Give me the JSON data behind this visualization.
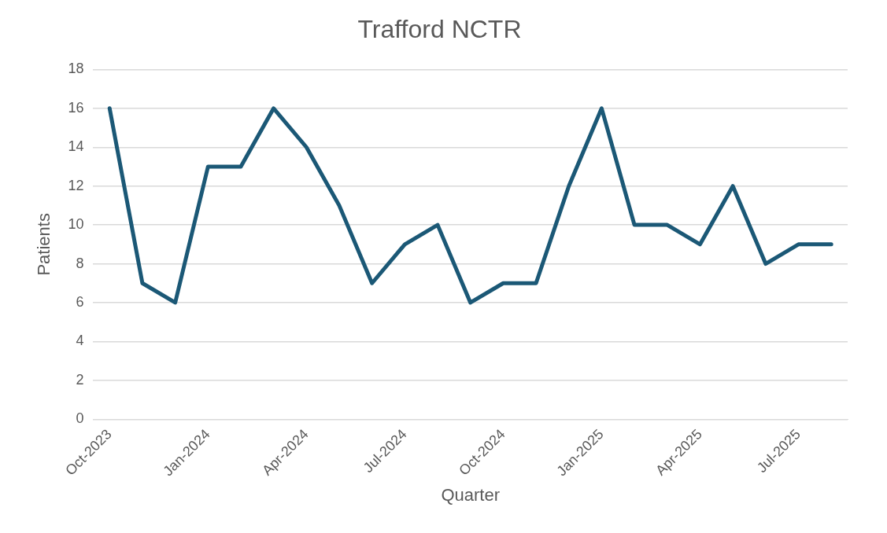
{
  "chart_data": {
    "type": "line",
    "title": "Trafford NCTR",
    "xlabel": "Quarter",
    "ylabel": "Patients",
    "categories": [
      "Oct-2023",
      null,
      null,
      "Jan-2024",
      null,
      null,
      "Apr-2024",
      null,
      null,
      "Jul-2024",
      null,
      null,
      "Oct-2024",
      null,
      null,
      "Jan-2025",
      null,
      null,
      "Apr-2025",
      null,
      null,
      "Jul-2025",
      null
    ],
    "series": [
      {
        "color": "#1b5876",
        "values": [
          16,
          7,
          6,
          13,
          13,
          16,
          14,
          11,
          7,
          9,
          10,
          6,
          7,
          7,
          12,
          16,
          10,
          10,
          9,
          12,
          8,
          9,
          9
        ]
      }
    ],
    "ylim": [
      0,
      18
    ],
    "yticks": [
      0,
      2,
      4,
      6,
      8,
      10,
      12,
      14,
      16,
      18
    ],
    "grid": "y",
    "legend": false,
    "marker": "none",
    "line_style": "solid"
  }
}
